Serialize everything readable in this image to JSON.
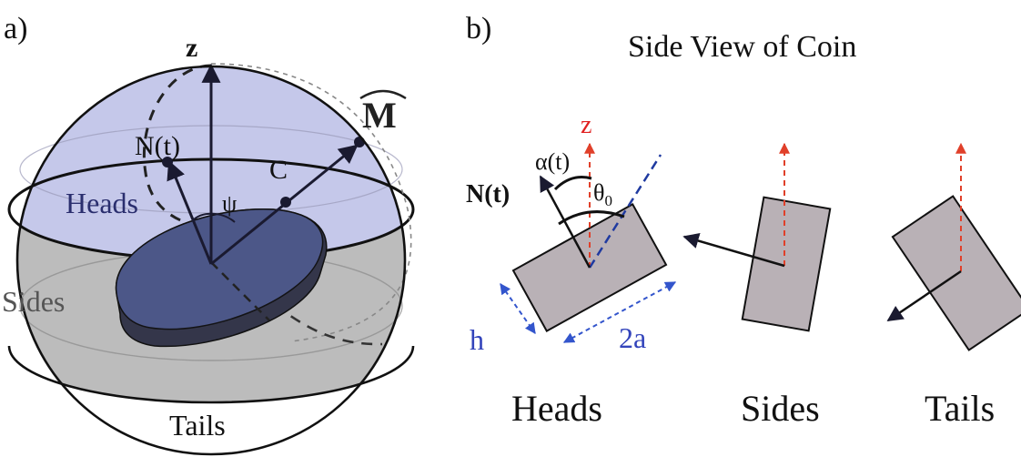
{
  "panel_a": {
    "label": "a)",
    "z_label": "z",
    "m_label": "M",
    "n_label": "N(t)",
    "c_label": "C",
    "psi_label": "ψ",
    "heads_label": "Heads",
    "sides_label": "Sides",
    "tails_label": "Tails"
  },
  "panel_b": {
    "label": "b)",
    "title": "Side View of Coin",
    "z_label": "z",
    "n_label": "N(t)",
    "alpha_label": "α(t)",
    "theta_label": "θ",
    "theta_sub": "0",
    "h_label": "h",
    "twoa_label": "2a",
    "heads_label": "Heads",
    "sides_label": "Sides",
    "tails_label": "Tails"
  },
  "colors": {
    "heads_cap": "#c5c8ea",
    "sides_band": "#bcbcbc",
    "coin_top": "#4f5a8e",
    "coin_side": "#34364a",
    "coin_rect": "#b9b1b6",
    "dashed_red": "#e0402a",
    "dashed_blue": "#1f3aa0",
    "arrow_blue": "#3355cc",
    "text_blue": "#3344bb",
    "text_red": "#e02020"
  }
}
